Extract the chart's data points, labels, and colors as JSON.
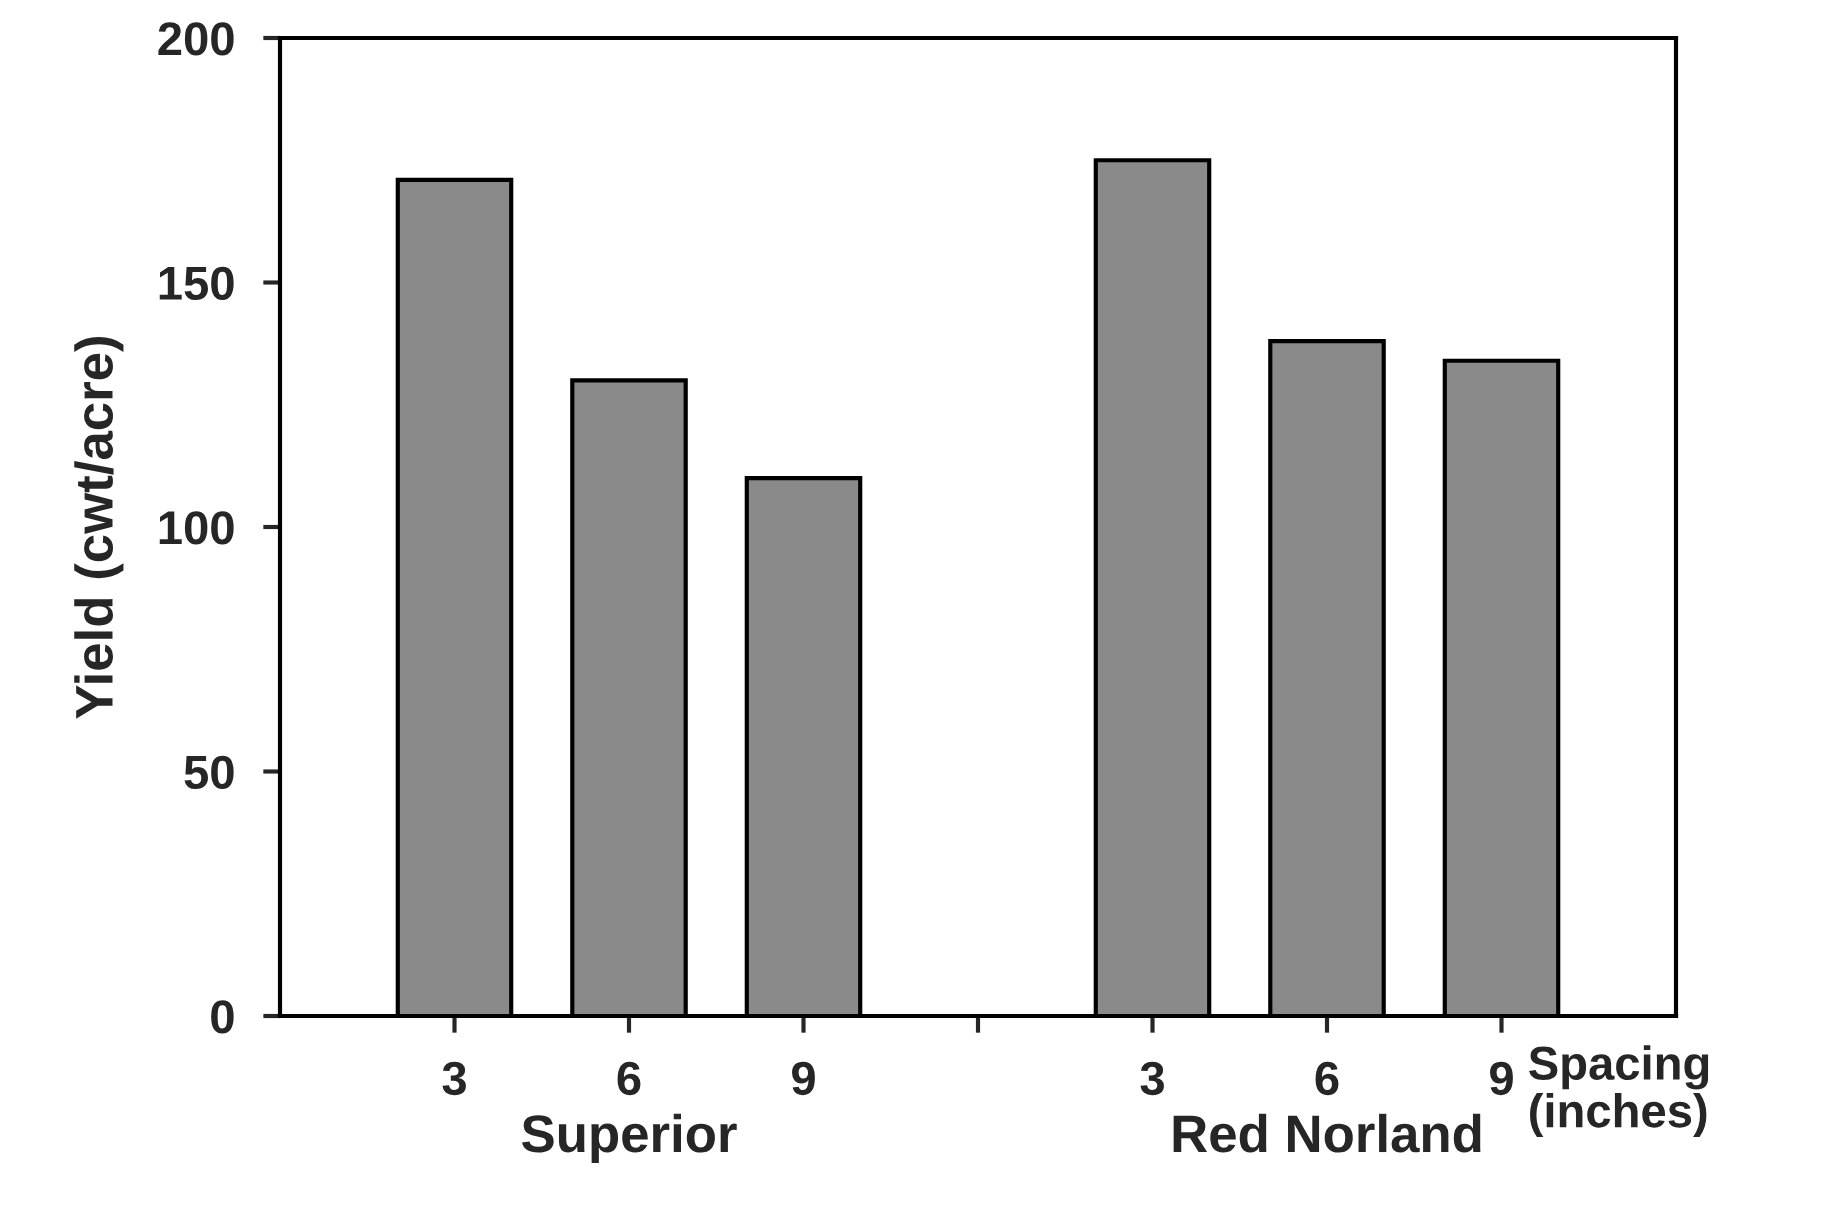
{
  "chart_data": {
    "type": "bar",
    "ylabel": "Yield (cwt/acre)",
    "categories": [
      "3",
      "6",
      "9",
      null,
      "3",
      "6",
      "9"
    ],
    "values": [
      171,
      130,
      110,
      null,
      175,
      138,
      134
    ],
    "color": "#8a8a8a",
    "ylim": [
      0,
      200
    ],
    "yticks": [
      0,
      50,
      100,
      150,
      200
    ],
    "grid": false,
    "legend": false,
    "annotations": [
      "Superior",
      "Red Norland",
      "Spacing\n(inches)"
    ]
  }
}
